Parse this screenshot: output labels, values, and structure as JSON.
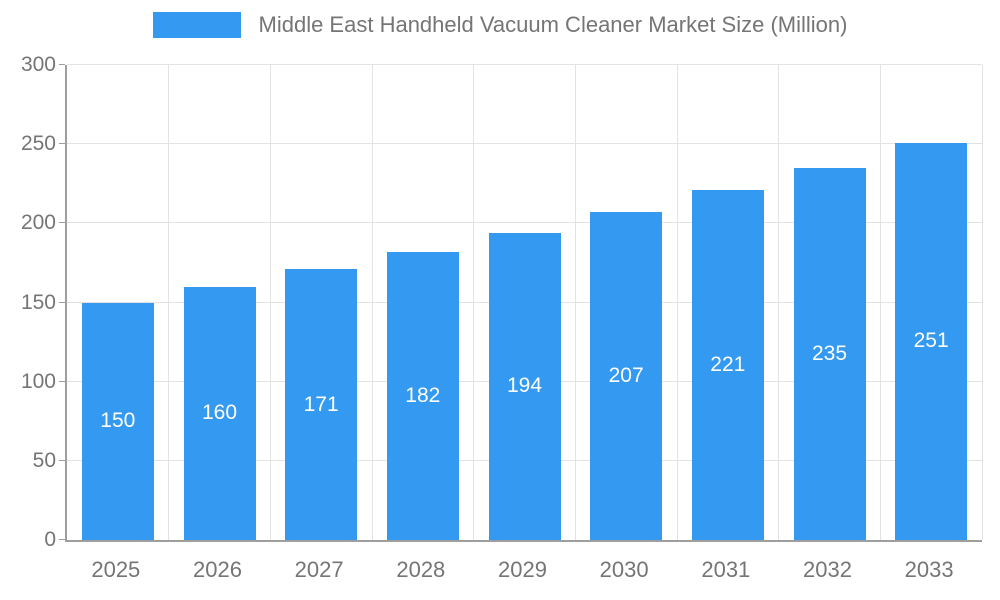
{
  "chart_data": {
    "type": "bar",
    "title": "Middle East Handheld Vacuum Cleaner Market Size (Million)",
    "categories": [
      "2025",
      "2026",
      "2027",
      "2028",
      "2029",
      "2030",
      "2031",
      "2032",
      "2033"
    ],
    "values": [
      150,
      160,
      171,
      182,
      194,
      207,
      221,
      235,
      251
    ],
    "xlabel": "",
    "ylabel": "",
    "ylim": [
      0,
      300
    ],
    "yticks": [
      0,
      50,
      100,
      150,
      200,
      250,
      300
    ],
    "grid": true,
    "legend_position": "top",
    "bar_color": "#3499f0",
    "value_label_color": "#ffffff",
    "axis_text_color": "#757575",
    "grid_color": "#e3e3e3"
  }
}
